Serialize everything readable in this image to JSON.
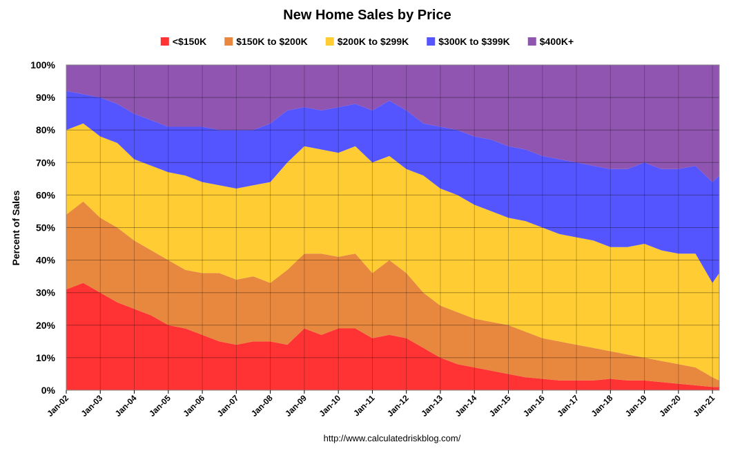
{
  "chart_data": {
    "type": "area",
    "stacked": true,
    "percent": true,
    "title": "New Home Sales by Price",
    "ylabel": "Percent of Sales",
    "xlabel": "",
    "ylim": [
      0,
      100
    ],
    "yticks": [
      "0%",
      "10%",
      "20%",
      "30%",
      "40%",
      "50%",
      "60%",
      "70%",
      "80%",
      "90%",
      "100%"
    ],
    "xticks": [
      "Jan-02",
      "Jan-03",
      "Jan-04",
      "Jan-05",
      "Jan-06",
      "Jan-07",
      "Jan-08",
      "Jan-09",
      "Jan-10",
      "Jan-11",
      "Jan-12",
      "Jan-13",
      "Jan-14",
      "Jan-15",
      "Jan-16",
      "Jan-17",
      "Jan-18",
      "Jan-19",
      "Jan-20",
      "Jan-21"
    ],
    "x_start_year": 2002,
    "x_end_year": 2021.2,
    "legend_position": "top",
    "source": "http://www.calculatedriskblog.com/",
    "years": [
      2002,
      2002.5,
      2003,
      2003.5,
      2004,
      2004.5,
      2005,
      2005.5,
      2006,
      2006.5,
      2007,
      2007.5,
      2008,
      2008.5,
      2009,
      2009.5,
      2010,
      2010.5,
      2011,
      2011.5,
      2012,
      2012.5,
      2013,
      2013.5,
      2014,
      2014.5,
      2015,
      2015.5,
      2016,
      2016.5,
      2017,
      2017.5,
      2018,
      2018.5,
      2019,
      2019.5,
      2020,
      2020.5,
      2021,
      2021.2
    ],
    "cumulative_tops": [
      {
        "name": "<$150K",
        "color": "#ff3333",
        "values": [
          31,
          33,
          30,
          27,
          25,
          23,
          20,
          19,
          17,
          15,
          14,
          15,
          15,
          14,
          19,
          17,
          19,
          19,
          16,
          17,
          16,
          13,
          10,
          8,
          7,
          6,
          5,
          4,
          3.5,
          3,
          3,
          3,
          3.5,
          3,
          3,
          2.5,
          2,
          1.5,
          1,
          1
        ]
      },
      {
        "name": "$150K to $200K",
        "color": "#e8883f",
        "values": [
          54,
          58,
          53,
          50,
          46,
          43,
          40,
          37,
          36,
          36,
          34,
          35,
          33,
          37,
          42,
          42,
          41,
          42,
          36,
          40,
          36,
          30,
          26,
          24,
          22,
          21,
          20,
          18,
          16,
          15,
          14,
          13,
          12,
          11,
          10,
          9,
          8,
          7,
          4,
          3
        ]
      },
      {
        "name": "$200K to $299K",
        "color": "#ffcc33",
        "values": [
          80,
          82,
          78,
          76,
          71,
          69,
          67,
          66,
          64,
          63,
          62,
          63,
          64,
          70,
          75,
          74,
          73,
          75,
          70,
          72,
          68,
          66,
          62,
          60,
          57,
          55,
          53,
          52,
          50,
          48,
          47,
          46,
          44,
          44,
          45,
          43,
          42,
          42,
          33,
          36
        ]
      },
      {
        "name": "$300K to $399K",
        "color": "#5555ff",
        "values": [
          92,
          91,
          90,
          88,
          85,
          83,
          81,
          81,
          81,
          80,
          80,
          80,
          82,
          86,
          87,
          86,
          87,
          88,
          86,
          89,
          86,
          82,
          81,
          80,
          78,
          77,
          75,
          74,
          72,
          71,
          70,
          69,
          68,
          68,
          70,
          68,
          68,
          69,
          64,
          66
        ]
      },
      {
        "name": "$400K+",
        "color": "#9055b0",
        "values": [
          100,
          100,
          100,
          100,
          100,
          100,
          100,
          100,
          100,
          100,
          100,
          100,
          100,
          100,
          100,
          100,
          100,
          100,
          100,
          100,
          100,
          100,
          100,
          100,
          100,
          100,
          100,
          100,
          100,
          100,
          100,
          100,
          100,
          100,
          100,
          100,
          100,
          100,
          100,
          100
        ]
      }
    ]
  }
}
